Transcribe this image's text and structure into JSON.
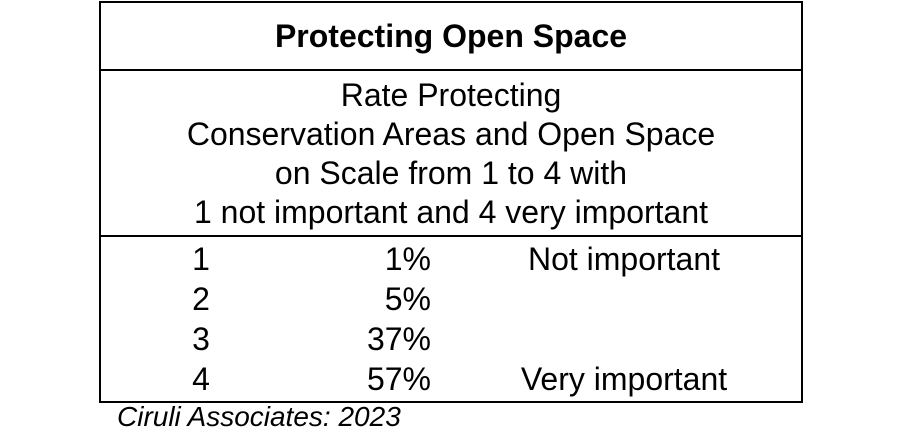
{
  "title": "Protecting Open Space",
  "question_lines": [
    "Rate Protecting",
    "Conservation Areas and Open Space",
    "on Scale from 1 to 4 with",
    "1 not important and 4 very important"
  ],
  "rows": [
    {
      "score": "1",
      "percent": "1%",
      "label": "Not important"
    },
    {
      "score": "2",
      "percent": "5%",
      "label": ""
    },
    {
      "score": "3",
      "percent": "37%",
      "label": ""
    },
    {
      "score": "4",
      "percent": "57%",
      "label": "Very important"
    }
  ],
  "source": "Ciruli Associates: 2023"
}
